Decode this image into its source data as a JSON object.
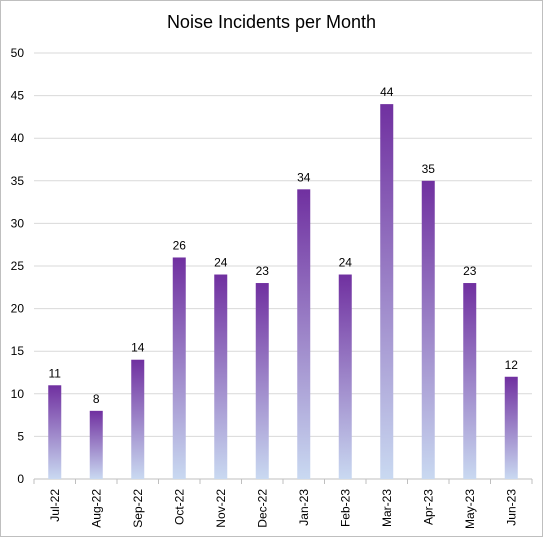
{
  "chart_data": {
    "type": "bar",
    "title": "Noise Incidents per Month",
    "xlabel": "",
    "ylabel": "",
    "categories": [
      "Jul-22",
      "Aug-22",
      "Sep-22",
      "Oct-22",
      "Nov-22",
      "Dec-22",
      "Jan-23",
      "Feb-23",
      "Mar-23",
      "Apr-23",
      "May-23",
      "Jun-23"
    ],
    "values": [
      11,
      8,
      14,
      26,
      24,
      23,
      34,
      24,
      44,
      35,
      23,
      12
    ],
    "ylim": [
      0,
      50
    ],
    "yticks": [
      0,
      5,
      10,
      15,
      20,
      25,
      30,
      35,
      40,
      45,
      50
    ],
    "grid": true,
    "legend": "none",
    "data_labels": true,
    "colors": {
      "bar_top": "#7030a0",
      "bar_bottom": "#c9d9f1",
      "grid": "#d9d9d9",
      "axis": "#bfbfbf"
    }
  }
}
